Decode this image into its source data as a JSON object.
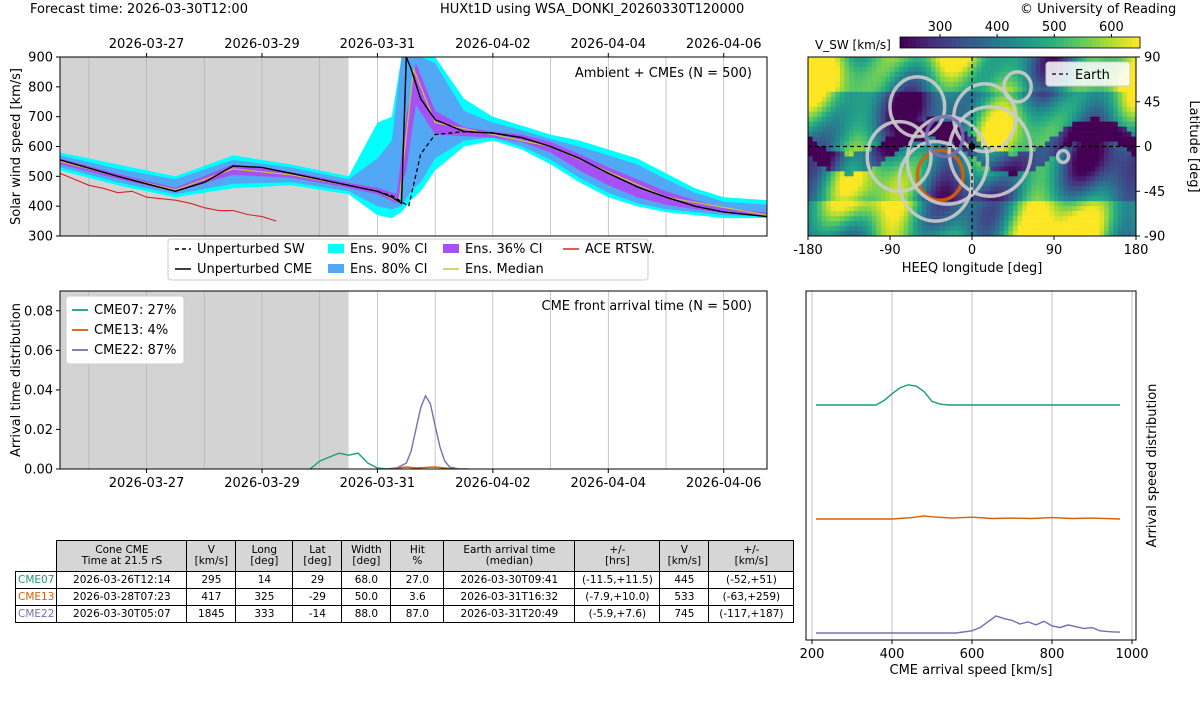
{
  "header": {
    "forecast_time": "Forecast time: 2026-03-30T12:00",
    "run_name": "HUXt1D using WSA_DONKI_20260330T120000",
    "copyright": "© University of Reading"
  },
  "chart_data": [
    {
      "type": "line",
      "id": "speed",
      "ylabel": "Solar wind speed [km/s]",
      "ylim": [
        300,
        900
      ],
      "yticks": [
        300,
        400,
        500,
        600,
        700,
        800,
        900
      ],
      "xlim": [
        "2026-03-25T12:00",
        "2026-04-06T18:00"
      ],
      "xticks": [
        "2026-03-27",
        "2026-03-29",
        "2026-03-31",
        "2026-04-02",
        "2026-04-04",
        "2026-04-06"
      ],
      "shaded_until": "2026-03-30T12:00",
      "annotation": "Ambient + CMEs (N = 500)",
      "grid": true,
      "legend": {
        "placement": "below",
        "entries": [
          {
            "label": "Unperturbed SW",
            "color": "#000000",
            "style": "dashed"
          },
          {
            "label": "Unperturbed CME",
            "color": "#000000",
            "style": "solid"
          },
          {
            "label": "Ens. 90% CI",
            "color": "#00ffff",
            "style": "patch"
          },
          {
            "label": "Ens. 80% CI",
            "color": "#52a8f5",
            "style": "patch"
          },
          {
            "label": "Ens. 36% CI",
            "color": "#a651f5",
            "style": "patch"
          },
          {
            "label": "Ens. Median",
            "color": "#c8c43a",
            "style": "solid"
          },
          {
            "label": "ACE RTSW.",
            "color": "#d62728",
            "style": "solid"
          }
        ]
      },
      "unperturbed_cme": {
        "x": [
          "2026-03-25T12:00",
          "2026-03-26T12:00",
          "2026-03-27T12:00",
          "2026-03-28T00:00",
          "2026-03-28T12:00",
          "2026-03-29T00:00",
          "2026-03-29T12:00",
          "2026-03-30T00:00",
          "2026-03-30T12:00",
          "2026-03-31T00:00",
          "2026-03-31T06:00",
          "2026-03-31T10:00",
          "2026-03-31T12:00",
          "2026-03-31T14:00",
          "2026-03-31T18:00",
          "2026-04-01T00:00",
          "2026-04-01T12:00",
          "2026-04-02T00:00",
          "2026-04-02T12:00",
          "2026-04-03T00:00",
          "2026-04-03T12:00",
          "2026-04-04T00:00",
          "2026-04-04T12:00",
          "2026-04-05T00:00",
          "2026-04-05T12:00",
          "2026-04-06T00:00",
          "2026-04-06T18:00"
        ],
        "y": [
          555,
          500,
          450,
          480,
          535,
          530,
          510,
          490,
          470,
          450,
          430,
          410,
          900,
          860,
          760,
          690,
          650,
          645,
          630,
          600,
          560,
          510,
          465,
          430,
          400,
          380,
          365
        ]
      },
      "unperturbed_sw": {
        "x": [
          "2026-03-31T00:00",
          "2026-03-31T06:00",
          "2026-03-31T09:00",
          "2026-03-31T13:00",
          "2026-03-31T18:00",
          "2026-04-01T00:00",
          "2026-04-01T12:00",
          "2026-04-02T00:00",
          "2026-04-02T12:00"
        ],
        "y": [
          450,
          435,
          420,
          400,
          575,
          640,
          650,
          645,
          630
        ]
      },
      "ensemble_median": {
        "x": [
          "2026-03-25T12:00",
          "2026-03-26T12:00",
          "2026-03-27T12:00",
          "2026-03-28T12:00",
          "2026-03-29T12:00",
          "2026-03-30T12:00",
          "2026-03-31T00:00",
          "2026-03-31T09:00",
          "2026-03-31T15:00",
          "2026-04-01T00:00",
          "2026-04-02T00:00",
          "2026-04-03T00:00",
          "2026-04-04T00:00",
          "2026-04-05T00:00",
          "2026-04-06T18:00"
        ],
        "y": [
          550,
          500,
          455,
          525,
          505,
          470,
          450,
          415,
          860,
          680,
          640,
          600,
          515,
          430,
          370
        ]
      },
      "ci90": {
        "x": [
          "2026-03-25T12:00",
          "2026-03-26T12:00",
          "2026-03-27T12:00",
          "2026-03-28T12:00",
          "2026-03-29T12:00",
          "2026-03-30T12:00",
          "2026-03-31T00:00",
          "2026-03-31T06:00",
          "2026-03-31T10:00",
          "2026-03-31T14:00",
          "2026-03-31T18:00",
          "2026-04-01T00:00",
          "2026-04-01T12:00",
          "2026-04-02T00:00",
          "2026-04-02T12:00",
          "2026-04-03T00:00",
          "2026-04-03T12:00",
          "2026-04-04T00:00",
          "2026-04-04T12:00",
          "2026-04-05T00:00",
          "2026-04-05T12:00",
          "2026-04-06T00:00",
          "2026-04-06T18:00"
        ],
        "low": [
          520,
          470,
          430,
          460,
          470,
          440,
          370,
          360,
          380,
          420,
          450,
          520,
          600,
          620,
          590,
          540,
          480,
          430,
          400,
          380,
          370,
          360,
          360
        ],
        "high": [
          580,
          540,
          500,
          570,
          540,
          500,
          680,
          700,
          900,
          900,
          900,
          900,
          760,
          700,
          670,
          640,
          620,
          590,
          560,
          510,
          460,
          430,
          420
        ]
      },
      "ci80": {
        "x": [
          "2026-03-25T12:00",
          "2026-03-26T12:00",
          "2026-03-27T12:00",
          "2026-03-28T12:00",
          "2026-03-29T12:00",
          "2026-03-30T12:00",
          "2026-03-31T00:00",
          "2026-03-31T06:00",
          "2026-03-31T10:00",
          "2026-03-31T14:00",
          "2026-03-31T18:00",
          "2026-04-01T00:00",
          "2026-04-01T12:00",
          "2026-04-02T00:00",
          "2026-04-02T12:00",
          "2026-04-03T00:00",
          "2026-04-03T12:00",
          "2026-04-04T00:00",
          "2026-04-04T12:00",
          "2026-04-05T00:00",
          "2026-04-05T12:00",
          "2026-04-06T00:00",
          "2026-04-06T18:00"
        ],
        "low": [
          530,
          480,
          440,
          475,
          480,
          450,
          400,
          390,
          400,
          450,
          480,
          560,
          620,
          630,
          600,
          555,
          495,
          445,
          410,
          390,
          380,
          370,
          365
        ],
        "high": [
          570,
          525,
          490,
          555,
          530,
          490,
          560,
          620,
          900,
          900,
          900,
          880,
          720,
          680,
          655,
          625,
          600,
          570,
          540,
          490,
          445,
          415,
          405
        ]
      },
      "ci36": {
        "x": [
          "2026-03-25T12:00",
          "2026-03-26T12:00",
          "2026-03-27T12:00",
          "2026-03-28T12:00",
          "2026-03-29T12:00",
          "2026-03-30T12:00",
          "2026-03-31T00:00",
          "2026-03-31T08:00",
          "2026-03-31T12:00",
          "2026-03-31T16:00",
          "2026-04-01T00:00",
          "2026-04-01T12:00",
          "2026-04-02T00:00",
          "2026-04-02T12:00",
          "2026-04-03T00:00",
          "2026-04-03T12:00",
          "2026-04-04T00:00",
          "2026-04-04T12:00",
          "2026-04-05T00:00",
          "2026-04-05T12:00",
          "2026-04-06T00:00",
          "2026-04-06T18:00"
        ],
        "low": [
          540,
          492,
          448,
          505,
          495,
          462,
          440,
          410,
          520,
          740,
          640,
          635,
          630,
          615,
          580,
          520,
          470,
          430,
          405,
          390,
          378,
          368
        ],
        "high": [
          560,
          508,
          462,
          540,
          515,
          478,
          462,
          440,
          700,
          880,
          720,
          665,
          650,
          640,
          615,
          575,
          530,
          490,
          450,
          420,
          395,
          378
        ]
      },
      "ace_rtsw": {
        "x": [
          "2026-03-25T12:00",
          "2026-03-25T18:00",
          "2026-03-26T00:00",
          "2026-03-26T06:00",
          "2026-03-26T12:00",
          "2026-03-26T18:00",
          "2026-03-27T00:00",
          "2026-03-27T06:00",
          "2026-03-27T12:00",
          "2026-03-27T18:00",
          "2026-03-28T00:00",
          "2026-03-28T06:00",
          "2026-03-28T12:00",
          "2026-03-28T18:00",
          "2026-03-29T00:00",
          "2026-03-29T06:00"
        ],
        "y": [
          510,
          490,
          470,
          460,
          445,
          450,
          430,
          425,
          420,
          410,
          395,
          385,
          385,
          372,
          365,
          350
        ]
      }
    },
    {
      "type": "line",
      "id": "arrival_time",
      "ylabel": "Arrival time distribution",
      "ylim": [
        0,
        0.09
      ],
      "yticks": [
        0.0,
        0.02,
        0.04,
        0.06,
        0.08
      ],
      "ytick_labels": [
        "0.00",
        "0.02",
        "0.04",
        "0.06",
        "0.08"
      ],
      "xlim": [
        "2026-03-25T12:00",
        "2026-04-06T18:00"
      ],
      "xticks": [
        "2026-03-27",
        "2026-03-29",
        "2026-03-31",
        "2026-04-02",
        "2026-04-04",
        "2026-04-06"
      ],
      "shaded_until": "2026-03-30T12:00",
      "annotation": "CME front arrival time (N = 500)",
      "grid": true,
      "legend": {
        "placement": "top-left"
      },
      "series": [
        {
          "name": "CME07: 27%",
          "color": "#1b9e77",
          "x": [
            "2026-03-29T20:00",
            "2026-03-30T00:00",
            "2026-03-30T04:00",
            "2026-03-30T08:00",
            "2026-03-30T12:00",
            "2026-03-30T16:00",
            "2026-03-30T20:00",
            "2026-03-31T00:00",
            "2026-03-31T04:00",
            "2026-03-31T08:00"
          ],
          "y": [
            0.0,
            0.004,
            0.006,
            0.008,
            0.007,
            0.008,
            0.003,
            0.0005,
            0.0,
            0.0
          ]
        },
        {
          "name": "CME13:  4%",
          "color": "#d95f02",
          "x": [
            "2026-03-31T04:00",
            "2026-03-31T08:00",
            "2026-03-31T12:00",
            "2026-03-31T16:00",
            "2026-03-31T20:00",
            "2026-04-01T00:00",
            "2026-04-01T04:00",
            "2026-04-01T08:00"
          ],
          "y": [
            0.0,
            0.0005,
            0.001,
            0.0005,
            0.0008,
            0.001,
            0.0005,
            0.0
          ]
        },
        {
          "name": "CME22: 87%",
          "color": "#7570b3",
          "x": [
            "2026-03-31T04:00",
            "2026-03-31T08:00",
            "2026-03-31T12:00",
            "2026-03-31T14:00",
            "2026-03-31T16:00",
            "2026-03-31T18:00",
            "2026-03-31T20:00",
            "2026-03-31T22:00",
            "2026-04-01T00:00",
            "2026-04-01T02:00",
            "2026-04-01T04:00",
            "2026-04-01T06:00",
            "2026-04-01T10:00",
            "2026-04-01T14:00"
          ],
          "y": [
            0.0,
            0.0005,
            0.003,
            0.009,
            0.02,
            0.031,
            0.037,
            0.033,
            0.022,
            0.011,
            0.004,
            0.001,
            0.0,
            0.0
          ]
        }
      ]
    },
    {
      "type": "heatmap",
      "id": "vsw_map",
      "colorbar_label": "V_SW [km/s]",
      "colorbar_ticks": [
        300,
        400,
        500,
        600
      ],
      "colorbar_range": [
        230,
        650
      ],
      "xlabel": "HEEQ longitude [deg]",
      "ylabel": "Latitude [deg]",
      "xlim": [
        -180,
        180
      ],
      "ylim": [
        -90,
        90
      ],
      "xticks": [
        -180,
        -90,
        0,
        90,
        180
      ],
      "yticks": [
        -90,
        -45,
        0,
        45,
        90
      ],
      "legend": {
        "placement": "top-right",
        "entries": [
          {
            "label": "Earth",
            "color": "#000000",
            "style": "dashed"
          }
        ]
      },
      "earth_position": [
        0,
        0
      ],
      "cme_cones": [
        {
          "lon": 14,
          "lat": 29,
          "width": 68,
          "color": "#cccccc"
        },
        {
          "lon": 325,
          "lat": -29,
          "width": 50,
          "color": "#d95f02"
        },
        {
          "lon": 333,
          "lat": -14,
          "width": 88,
          "color": "#cccccc"
        },
        {
          "lon": -60,
          "lat": 40,
          "width": 60,
          "color": "#cccccc"
        },
        {
          "lon": -80,
          "lat": -10,
          "width": 70,
          "color": "#cccccc"
        },
        {
          "lon": -40,
          "lat": -35,
          "width": 80,
          "color": "#cccccc"
        },
        {
          "lon": 20,
          "lat": -5,
          "width": 90,
          "color": "#cccccc"
        },
        {
          "lon": 50,
          "lat": 60,
          "width": 30,
          "color": "#cccccc"
        },
        {
          "lon": 100,
          "lat": -10,
          "width": 12,
          "color": "#cccccc"
        },
        {
          "lon": -30,
          "lat": 10,
          "width": 40,
          "color": "#7570b3"
        }
      ]
    },
    {
      "type": "line",
      "id": "arrival_speed",
      "xlabel": "CME arrival speed [km/s]",
      "ylabel": "Arrival speed distribution",
      "xlim": [
        185,
        1010
      ],
      "xticks": [
        200,
        400,
        600,
        800,
        1000
      ],
      "grid": true,
      "series": [
        {
          "name": "CME07",
          "color": "#1b9e77",
          "x": [
            210,
            360,
            380,
            400,
            420,
            440,
            460,
            480,
            500,
            520,
            540,
            970
          ],
          "y": [
            0,
            0,
            0.1,
            0.25,
            0.38,
            0.45,
            0.42,
            0.3,
            0.08,
            0.02,
            0,
            0
          ]
        },
        {
          "name": "CME13",
          "color": "#d95f02",
          "x": [
            210,
            400,
            450,
            480,
            500,
            550,
            600,
            650,
            700,
            750,
            800,
            850,
            900,
            970
          ],
          "y": [
            0,
            0,
            0.03,
            0.07,
            0.05,
            0.02,
            0.04,
            0.01,
            0.02,
            0.01,
            0.03,
            0.01,
            0.02,
            0
          ]
        },
        {
          "name": "CME22",
          "color": "#7570b3",
          "x": [
            210,
            560,
            600,
            620,
            640,
            660,
            680,
            700,
            720,
            740,
            760,
            780,
            800,
            820,
            840,
            860,
            880,
            900,
            920,
            940,
            960,
            970
          ],
          "y": [
            0,
            0,
            0.05,
            0.12,
            0.25,
            0.38,
            0.32,
            0.28,
            0.2,
            0.25,
            0.18,
            0.26,
            0.16,
            0.12,
            0.18,
            0.14,
            0.1,
            0.12,
            0.05,
            0.03,
            0.02,
            0.02
          ]
        }
      ]
    }
  ],
  "table": {
    "headers": [
      "Cone CME\nTime at 21.5 rS",
      "V\n[km/s]",
      "Long\n[deg]",
      "Lat\n[deg]",
      "Width\n[deg]",
      "Hit\n%",
      "Earth arrival time\n(median)",
      "+/-\n[hrs]",
      "V\n[km/s]",
      "+/-\n[km/s]"
    ],
    "rows": [
      {
        "name": "CME07",
        "color": "#1b9e77",
        "cells": [
          "2026-03-26T12:14",
          "295",
          "14",
          "29",
          "68.0",
          "27.0",
          "2026-03-30T09:41",
          "(-11.5,+11.5)",
          "445",
          "(-52,+51)"
        ]
      },
      {
        "name": "CME13",
        "color": "#d95f02",
        "cells": [
          "2026-03-28T07:23",
          "417",
          "325",
          "-29",
          "50.0",
          "3.6",
          "2026-03-31T16:32",
          "(-7.9,+10.0)",
          "533",
          "(-63,+259)"
        ]
      },
      {
        "name": "CME22",
        "color": "#7570b3",
        "cells": [
          "2026-03-30T05:07",
          "1845",
          "333",
          "-14",
          "88.0",
          "87.0",
          "2026-03-31T20:49",
          "(-5.9,+7.6)",
          "745",
          "(-117,+187)"
        ]
      }
    ]
  }
}
